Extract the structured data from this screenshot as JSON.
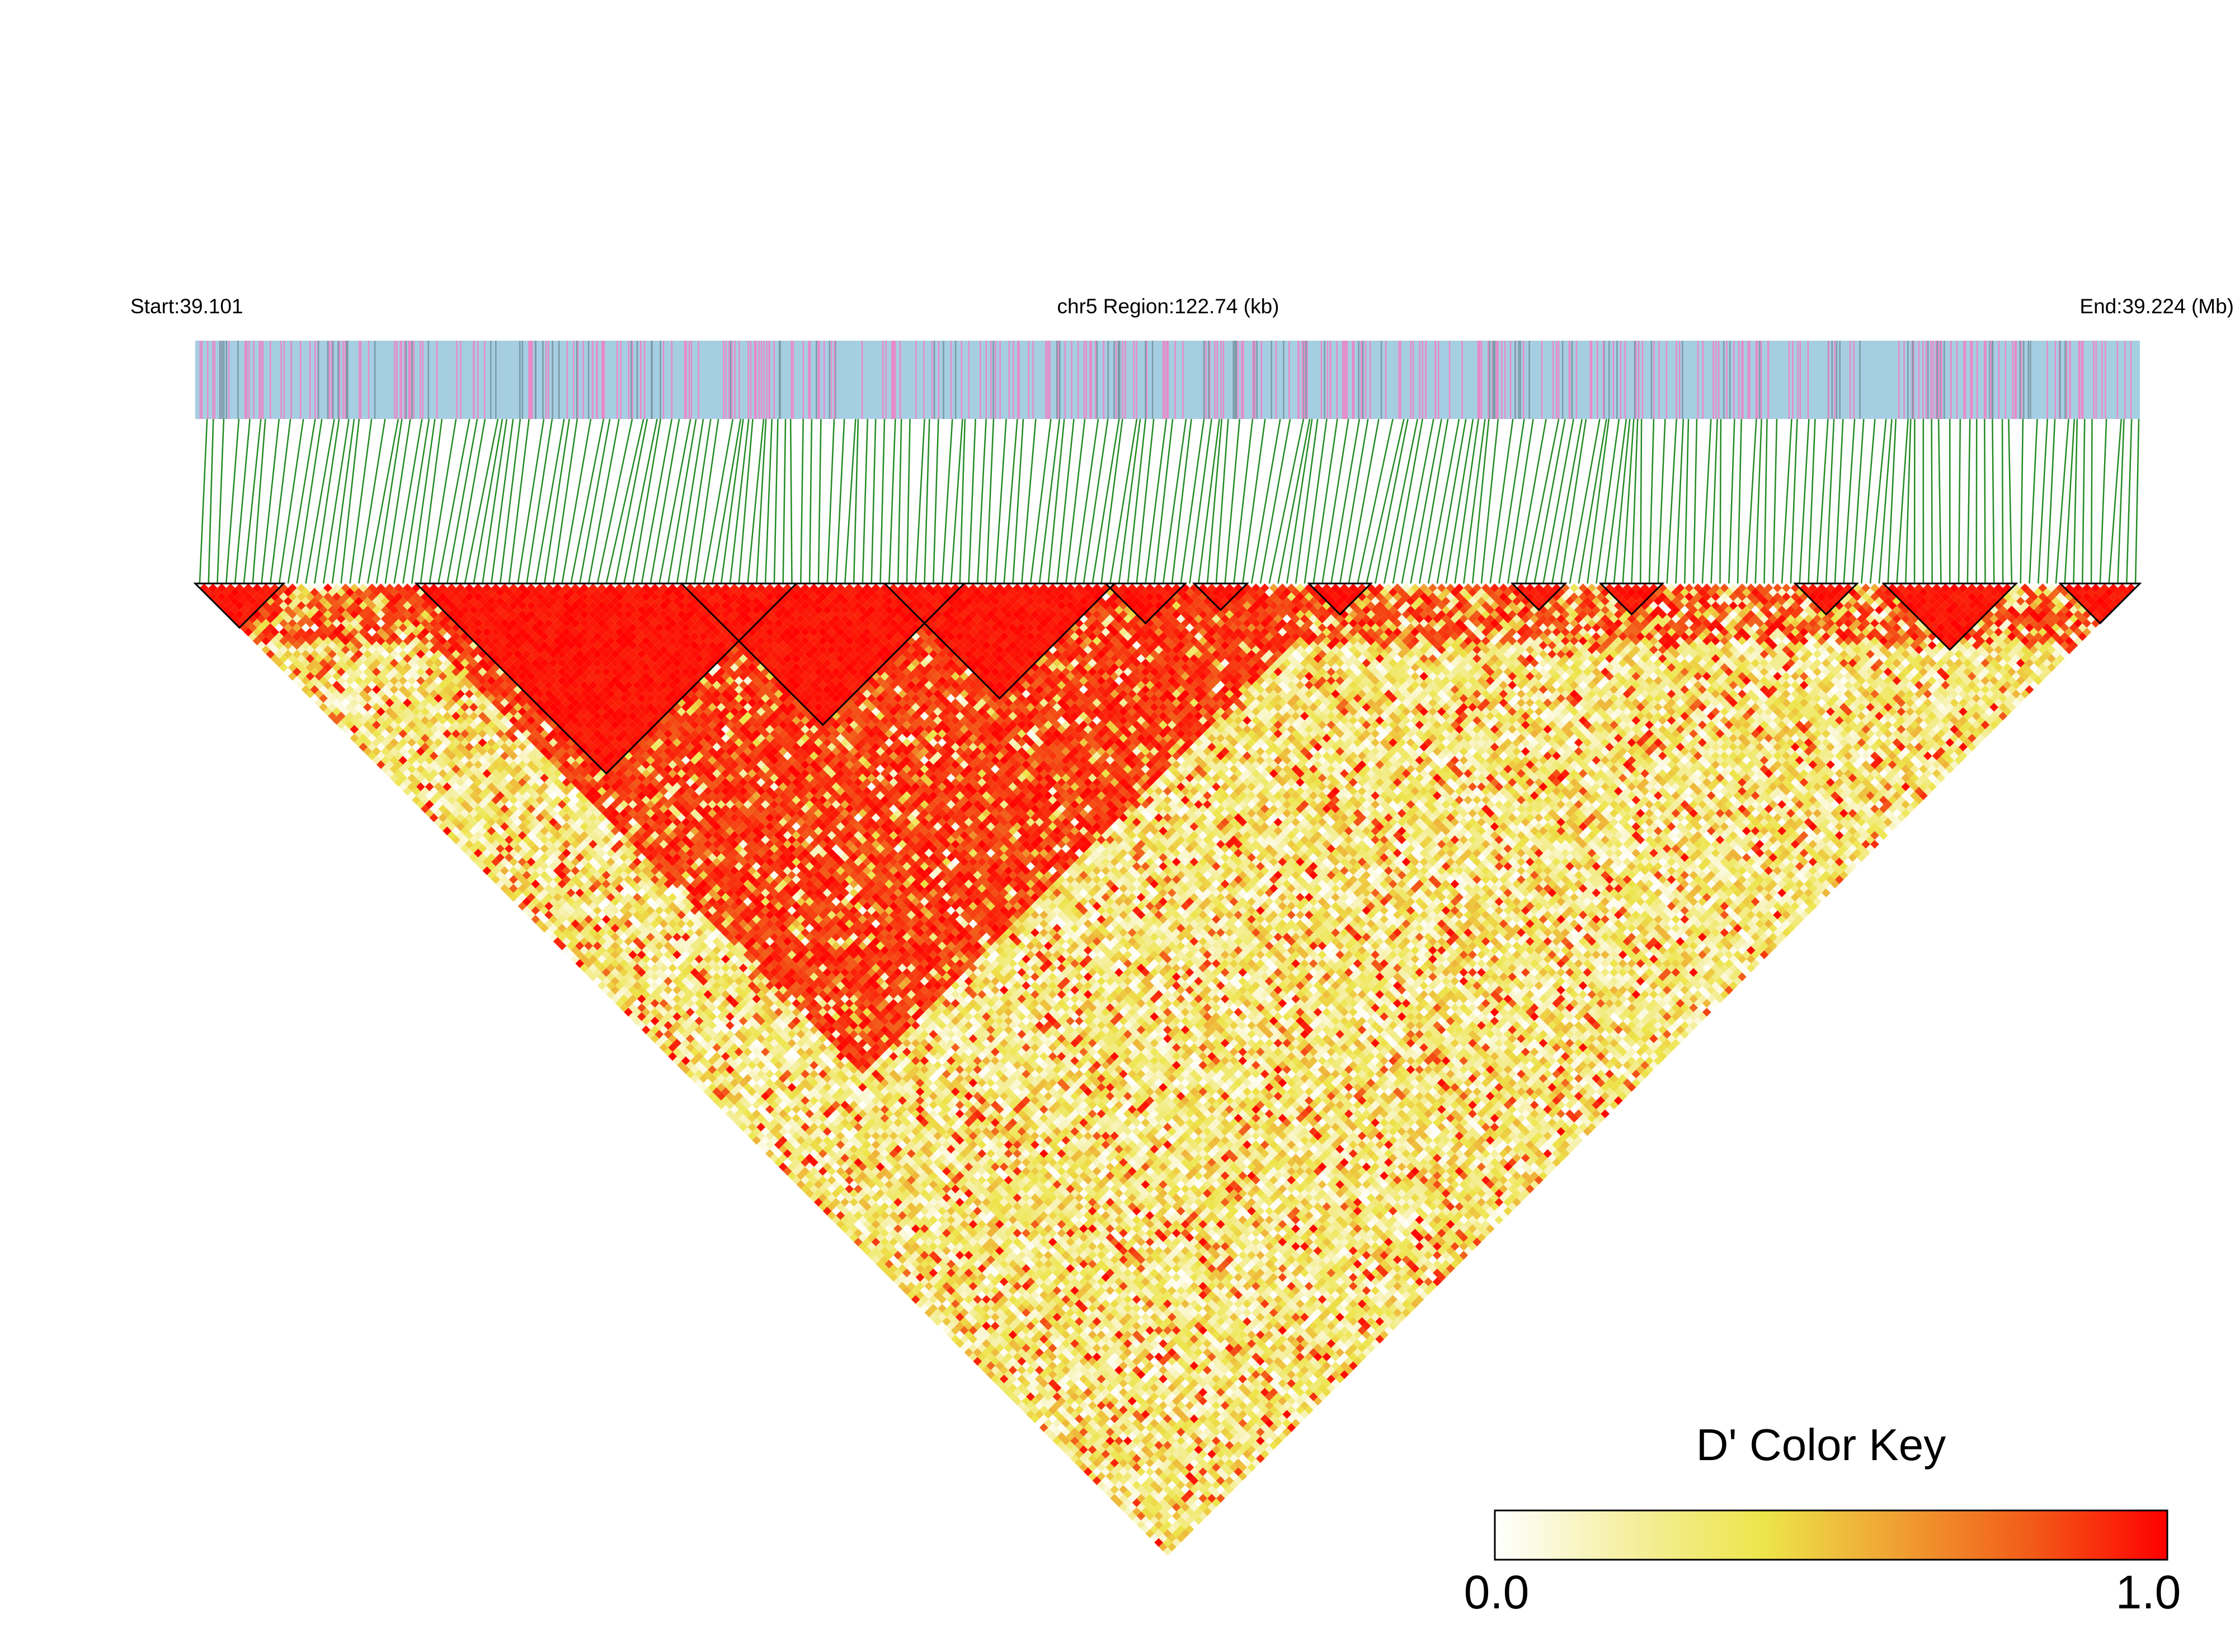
{
  "chart_data": {
    "type": "heatmap",
    "title": "",
    "region_start_label": "Start:39.101",
    "region_center_label": "chr5 Region:122.74 (kb)",
    "region_end_label": "End:39.224 (Mb)",
    "chromosome": "chr5",
    "start_mb": 39.101,
    "end_mb": 39.224,
    "region_kb": 122.74,
    "snp_count": 220,
    "measure": "D'",
    "color_key": {
      "title": "D' Color Key",
      "min_label": "0.0",
      "max_label": "1.0",
      "min": 0.0,
      "max": 1.0,
      "stops": [
        "#ffffff",
        "#f5efa0",
        "#ede54a",
        "#f0a032",
        "#f25a18",
        "#ff0000"
      ]
    },
    "colors": {
      "gene_track_bg": "#a6cee3",
      "gene_track_mark_pink": "#e889c8",
      "gene_track_mark_gray": "#7a9aa5",
      "snp_connector": "#228b22",
      "block_outline": "#000000"
    },
    "ld_blocks": [
      {
        "from_snp": 1,
        "to_snp": 10
      },
      {
        "from_snp": 26,
        "to_snp": 68
      },
      {
        "from_snp": 56,
        "to_snp": 87
      },
      {
        "from_snp": 79,
        "to_snp": 104
      },
      {
        "from_snp": 104,
        "to_snp": 112
      },
      {
        "from_snp": 114,
        "to_snp": 119
      },
      {
        "from_snp": 127,
        "to_snp": 133
      },
      {
        "from_snp": 150,
        "to_snp": 155
      },
      {
        "from_snp": 160,
        "to_snp": 166
      },
      {
        "from_snp": 182,
        "to_snp": 188
      },
      {
        "from_snp": 192,
        "to_snp": 206
      },
      {
        "from_snp": 212,
        "to_snp": 220
      }
    ],
    "high_ld_region": {
      "from_snp": 20,
      "to_snp": 130,
      "typical_d_prime": 0.9
    },
    "background_d_prime": 0.3
  }
}
